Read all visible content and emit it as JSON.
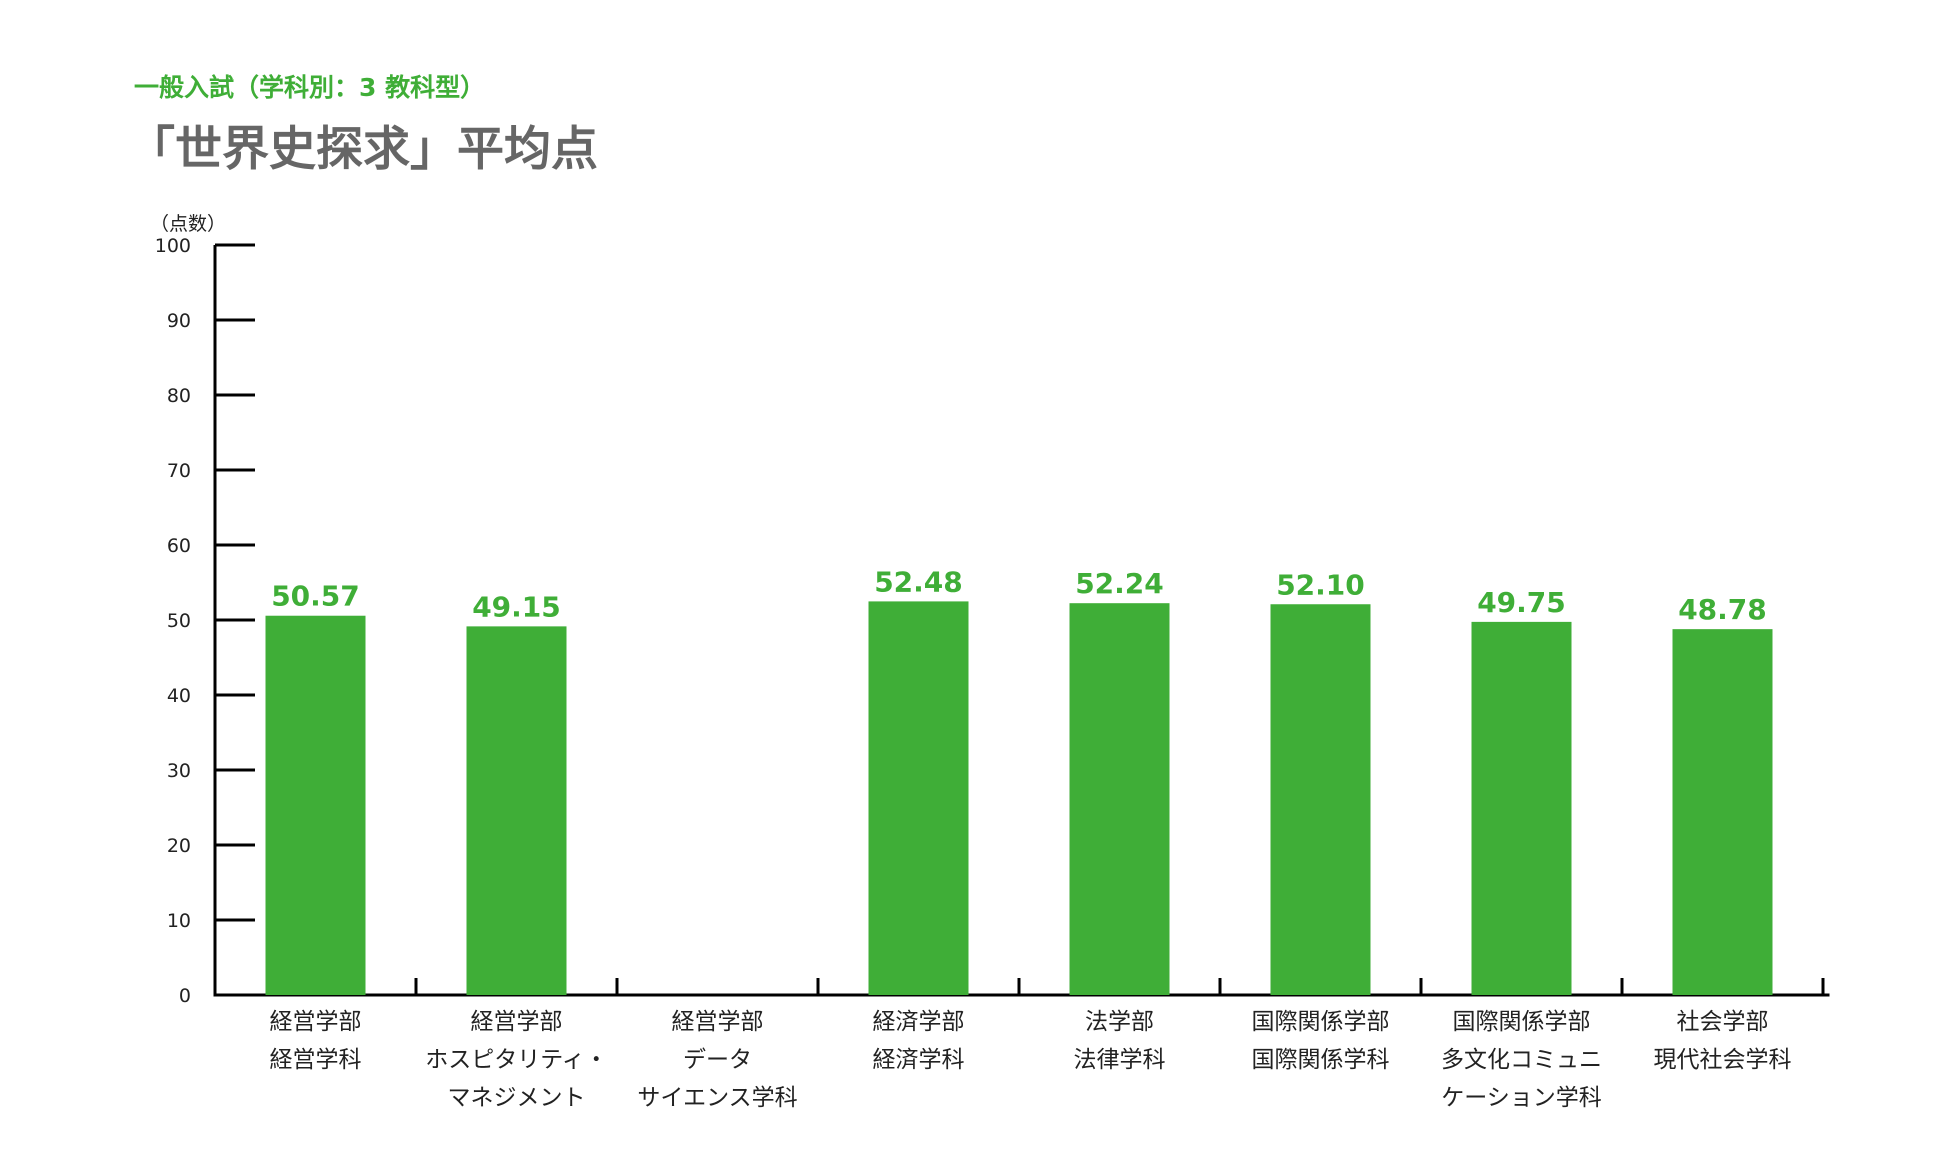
{
  "header": {
    "subtitle": "一般入試（学科別：3 教科型）",
    "title": "「世界史探求」平均点"
  },
  "colors": {
    "bar": "#3fae37",
    "value_label": "#3fae37",
    "axis": "#000000",
    "title": "#666666"
  },
  "chart_data": {
    "type": "bar",
    "title": "「世界史探求」平均点",
    "subtitle": "一般入試（学科別：3 教科型）",
    "ylabel": "（点数）",
    "xlabel": "",
    "ylim": [
      0,
      100
    ],
    "yticks": [
      0,
      10,
      20,
      30,
      40,
      50,
      60,
      70,
      80,
      90,
      100
    ],
    "grid": false,
    "categories": [
      [
        "経営学部",
        "経営学科"
      ],
      [
        "経営学部",
        "ホスピタリティ・",
        "マネジメント"
      ],
      [
        "経営学部",
        "データ",
        "サイエンス学科"
      ],
      [
        "経済学部",
        "経済学科"
      ],
      [
        "法学部",
        "法律学科"
      ],
      [
        "国際関係学部",
        "国際関係学科"
      ],
      [
        "国際関係学部",
        "多文化コミュニ",
        "ケーション学科"
      ],
      [
        "社会学部",
        "現代社会学科"
      ]
    ],
    "values": [
      50.57,
      49.15,
      null,
      52.48,
      52.24,
      52.1,
      49.75,
      48.78
    ],
    "value_labels": [
      "50.57",
      "49.15",
      "",
      "52.48",
      "52.24",
      "52.10",
      "49.75",
      "48.78"
    ]
  }
}
